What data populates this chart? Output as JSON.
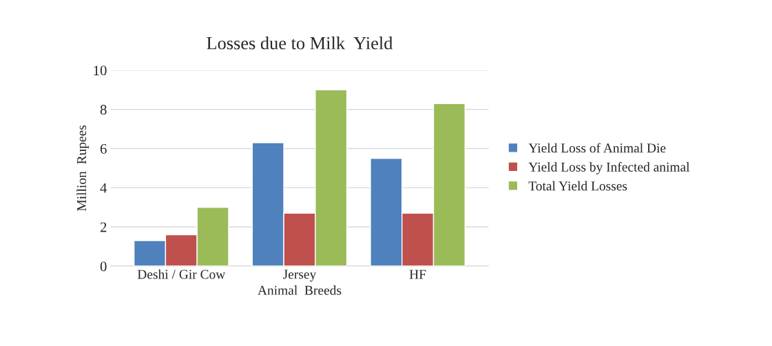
{
  "chart_data": {
    "type": "bar",
    "title": "Losses due to Milk  Yield",
    "xlabel": "Animal  Breeds",
    "ylabel": "Million  Rupees",
    "categories": [
      "Deshi / Gir Cow",
      "Jersey",
      "HF"
    ],
    "series": [
      {
        "name": "Yield Loss of Animal Die",
        "color": "#4f81bd",
        "values": [
          1.3,
          6.3,
          5.5
        ]
      },
      {
        "name": "Yield Loss by Infected animal",
        "color": "#c0504d",
        "values": [
          1.6,
          2.7,
          2.7
        ]
      },
      {
        "name": "Total Yield Losses",
        "color": "#9bbb59",
        "values": [
          3.0,
          9.0,
          8.3
        ]
      }
    ],
    "ylim": [
      0,
      10
    ],
    "yticks": [
      0,
      2,
      4,
      6,
      8,
      10
    ],
    "grid": "y",
    "legend": "right"
  }
}
